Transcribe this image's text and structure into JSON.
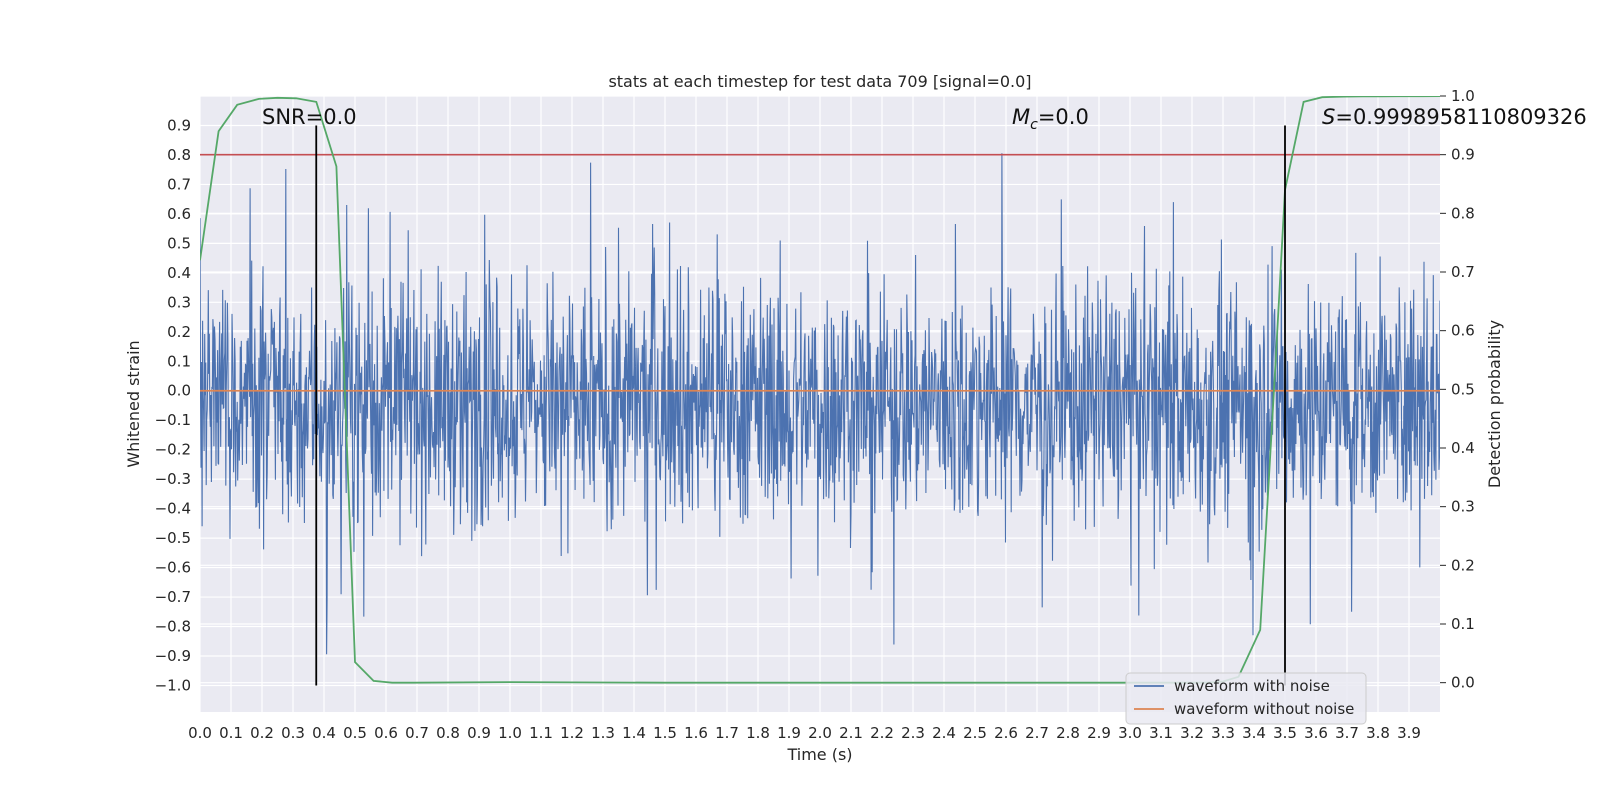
{
  "chart_data": {
    "type": "line",
    "title": "stats at each timestep for test data 709 [signal=0.0]",
    "xlabel": "Time (s)",
    "ylabel_left": "Whitened strain",
    "ylabel_right": "Detection probability",
    "xlim": [
      0.0,
      4.0
    ],
    "ylim_left": [
      -1.09,
      1.0
    ],
    "ylim_right": [
      -0.05,
      1.0
    ],
    "x_ticks": [
      "0.0",
      "0.1",
      "0.2",
      "0.3",
      "0.4",
      "0.5",
      "0.6",
      "0.7",
      "0.8",
      "0.9",
      "1.0",
      "1.1",
      "1.2",
      "1.3",
      "1.4",
      "1.5",
      "1.6",
      "1.7",
      "1.8",
      "1.9",
      "2.0",
      "2.1",
      "2.2",
      "2.3",
      "2.4",
      "2.5",
      "2.6",
      "2.7",
      "2.8",
      "2.9",
      "3.0",
      "3.1",
      "3.2",
      "3.3",
      "3.4",
      "3.5",
      "3.6",
      "3.7",
      "3.8",
      "3.9"
    ],
    "y_ticks_left": [
      "−1.0",
      "−0.9",
      "−0.8",
      "−0.7",
      "−0.6",
      "−0.5",
      "−0.4",
      "−0.3",
      "−0.2",
      "−0.1",
      "0.0",
      "0.1",
      "0.2",
      "0.3",
      "0.4",
      "0.5",
      "0.6",
      "0.7",
      "0.8",
      "0.9"
    ],
    "y_ticks_right": [
      "0.0",
      "0.1",
      "0.2",
      "0.3",
      "0.4",
      "0.5",
      "0.6",
      "0.7",
      "0.8",
      "0.9",
      "1.0"
    ],
    "annotations": {
      "snr": "SNR=0.0",
      "mc_symbol": "M",
      "mc_sub": "c",
      "mc_value": "=0.0",
      "s_symbol": "S",
      "s_value": "=0.9998958110809326"
    },
    "vlines": [
      {
        "x": 0.375,
        "ymin": -1.0,
        "ymax": 0.9
      },
      {
        "x": 3.5,
        "ymin": -1.0,
        "ymax": 0.9
      }
    ],
    "threshold": {
      "value": 0.9,
      "axis": "right",
      "color": "#c44e52"
    },
    "series": [
      {
        "name": "waveform with noise",
        "color": "#4c72b0",
        "axis": "left",
        "kind": "noise",
        "amplitude_range": [
          -1.0,
          0.9
        ],
        "values": "random noise, dense"
      },
      {
        "name": "waveform without noise",
        "color": "#dd8452",
        "axis": "left",
        "x": [
          0.0,
          4.0
        ],
        "values": [
          0.0,
          0.0
        ]
      },
      {
        "name": "detection probability",
        "color": "#55a868",
        "axis": "right",
        "x": [
          0.0,
          0.06,
          0.12,
          0.19,
          0.25,
          0.31,
          0.375,
          0.44,
          0.5,
          0.56,
          0.62,
          0.69,
          1.0,
          1.5,
          2.0,
          2.5,
          3.0,
          3.25,
          3.3,
          3.35,
          3.42,
          3.47,
          3.5,
          3.56,
          3.62,
          3.69,
          3.75,
          3.81,
          3.88,
          3.94,
          4.0
        ],
        "values": [
          0.72,
          0.94,
          0.985,
          0.995,
          0.997,
          0.996,
          0.99,
          0.88,
          0.035,
          0.003,
          0.0,
          0.0,
          0.001,
          0.0,
          0.0,
          0.0,
          0.0,
          0.0,
          0.002,
          0.01,
          0.09,
          0.55,
          0.84,
          0.99,
          0.998,
          0.999,
          0.9995,
          0.9995,
          0.9996,
          0.9996,
          0.9999
        ]
      }
    ],
    "legend": {
      "position": "lower-right",
      "entries": [
        "waveform with noise",
        "waveform without noise"
      ]
    },
    "grid": true
  }
}
